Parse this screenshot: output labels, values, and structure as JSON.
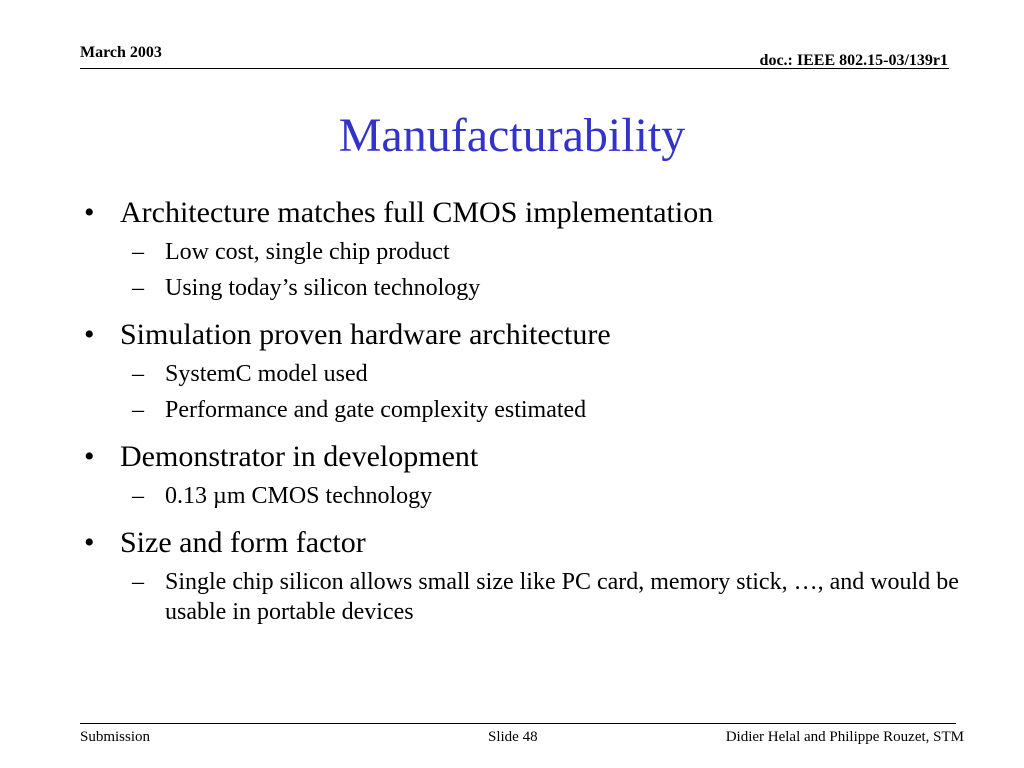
{
  "header": {
    "date": "March 2003",
    "doc_id": "doc.: IEEE 802.15-03/139r1"
  },
  "title": "Manufacturability",
  "bullets": [
    {
      "text": "Architecture matches full CMOS implementation",
      "subs": [
        "Low cost, single chip product",
        "Using today’s silicon technology"
      ]
    },
    {
      "text": "Simulation proven hardware architecture",
      "subs": [
        "SystemC model used",
        "Performance and gate complexity estimated"
      ]
    },
    {
      "text": "Demonstrator in development",
      "subs": [
        "0.13 µm CMOS technology"
      ]
    },
    {
      "text": "Size and form factor",
      "subs": [
        "Single chip silicon allows small size like PC card, memory stick, …, and would be usable in portable devices"
      ]
    }
  ],
  "markers": {
    "level1": "•",
    "level2": "–"
  },
  "footer": {
    "left": "Submission",
    "center": "Slide 48",
    "right": "Didier Helal and Philippe Rouzet, STM"
  },
  "colors": {
    "title": "#3333cc",
    "text": "#000000",
    "background": "#ffffff"
  }
}
